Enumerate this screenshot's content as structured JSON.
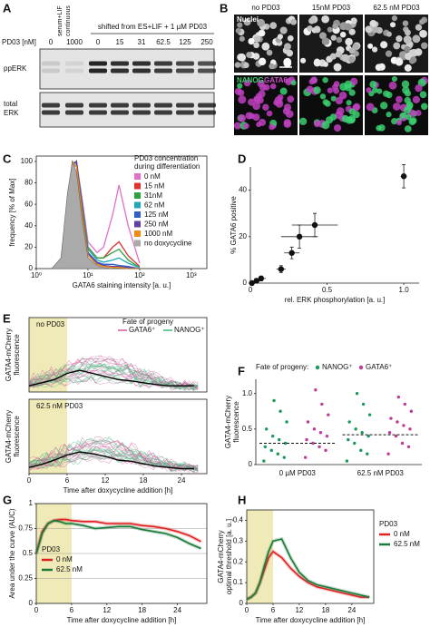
{
  "figure": {
    "A": {
      "panel": "A",
      "header_left": [
        "serum+LIF",
        "continuous"
      ],
      "header_right": "shifted from ES+LIF + 1 µM PD03",
      "row_label": "PD03 [nM]",
      "lanes": [
        0,
        1000,
        0,
        15,
        31,
        62.5,
        125,
        250
      ],
      "blot1": "ppERK",
      "blot2": [
        "total",
        "ERK"
      ]
    },
    "B": {
      "panel": "B",
      "columns": [
        "no PD03",
        "15nM PD03",
        "62.5 nM PD03"
      ],
      "stain1": "Nuclei",
      "stain2a": "NANOG",
      "stain2b": "GATA6"
    }
  },
  "chart_data": [
    {
      "panel": "C",
      "type": "line",
      "xlog": true,
      "legend_title": [
        "PD03 concentration",
        "during differentiation"
      ],
      "ylabel": "frequency [% of Max]",
      "xlabel": "GATA6 staining intensity [a. u.]",
      "xlim": [
        1,
        2000
      ],
      "xticks": [
        {
          "value": 1,
          "label": "10⁰"
        },
        {
          "value": 10,
          "label": "10¹"
        },
        {
          "value": 100,
          "label": "10²"
        },
        {
          "value": 1000,
          "label": "10³"
        }
      ],
      "ylim": [
        0,
        105
      ],
      "yticks": [
        0,
        20,
        40,
        60,
        80,
        100
      ],
      "x": [
        2,
        3,
        4,
        5,
        6,
        8,
        10,
        15,
        20,
        30,
        40,
        60,
        100
      ],
      "series": [
        {
          "name": "0 nM",
          "color": "#e070c8",
          "values": [
            0,
            5,
            40,
            90,
            100,
            60,
            25,
            15,
            20,
            50,
            78,
            40,
            5
          ]
        },
        {
          "name": "15 nM",
          "color": "#e03030",
          "values": [
            0,
            5,
            45,
            95,
            100,
            55,
            20,
            10,
            10,
            20,
            25,
            12,
            2
          ]
        },
        {
          "name": "31nM",
          "color": "#30a040",
          "values": [
            0,
            5,
            45,
            95,
            100,
            55,
            20,
            10,
            10,
            15,
            18,
            8,
            1
          ]
        },
        {
          "name": "62 nM",
          "color": "#20a8b8",
          "values": [
            0,
            5,
            50,
            95,
            100,
            50,
            18,
            8,
            6,
            8,
            10,
            5,
            1
          ]
        },
        {
          "name": "125 nM",
          "color": "#3060c8",
          "values": [
            0,
            5,
            50,
            98,
            100,
            50,
            15,
            6,
            4,
            4,
            3,
            2,
            0
          ]
        },
        {
          "name": "250 nM",
          "color": "#6040a0",
          "values": [
            0,
            5,
            50,
            98,
            100,
            48,
            14,
            5,
            3,
            2,
            2,
            1,
            0
          ]
        },
        {
          "name": "1000 nM",
          "color": "#f08c10",
          "values": [
            0,
            8,
            60,
            100,
            95,
            45,
            12,
            4,
            2,
            1,
            1,
            0,
            0
          ]
        },
        {
          "name": "no doxycycline",
          "color": "#aaaaaa",
          "fill": true,
          "values": [
            0,
            10,
            70,
            100,
            90,
            40,
            10,
            3,
            1,
            0,
            0,
            0,
            0
          ]
        }
      ]
    },
    {
      "panel": "D",
      "type": "scatter",
      "ylabel": "% GATA6 positive",
      "xlabel": "rel. ERK phosphorylation [a. u.]",
      "xlim": [
        0,
        1.1
      ],
      "xticks": [
        0,
        0.5,
        {
          "value": 1,
          "label": "1.0"
        }
      ],
      "ylim": [
        0,
        50
      ],
      "yticks": [
        0,
        20,
        40
      ],
      "x": [
        0.01,
        0.04,
        0.07,
        0.2,
        0.27,
        0.32,
        0.42,
        1.0
      ],
      "values": [
        0,
        1,
        2,
        6,
        13,
        20,
        25,
        46
      ],
      "xerr": [
        0.01,
        0.02,
        0.03,
        0.03,
        0.05,
        0.12,
        0.15,
        0.02
      ],
      "yerr": [
        0.5,
        1,
        1,
        1.5,
        2.5,
        5,
        5,
        5
      ]
    },
    {
      "panel": "E",
      "type": "line",
      "title": "no PD03",
      "ylabel": [
        "GATA4-mCherry",
        "fluorescence"
      ],
      "legend": {
        "title": "Fate of progeny",
        "entries": [
          {
            "name": "GATA6⁺",
            "color": "#d4559f"
          },
          {
            "name": "NANOG⁺",
            "color": "#3cb878"
          }
        ]
      },
      "highlight": [
        0,
        6
      ],
      "xlim": [
        0,
        28
      ],
      "ylim": [
        0,
        1.2
      ],
      "color": "#000000",
      "x": [
        0,
        2,
        4,
        6,
        8,
        10,
        12,
        14,
        16,
        18,
        20,
        22,
        24,
        26
      ],
      "values": [
        0.1,
        0.15,
        0.2,
        0.3,
        0.35,
        0.3,
        0.25,
        0.2,
        0.18,
        0.15,
        0.12,
        0.1,
        0.1,
        0.1
      ]
    },
    {
      "type": "line",
      "title": "62.5 nM PD03",
      "ylabel": [
        "GATA4-mCherry",
        "fluorescence"
      ],
      "xlabel": "Time after doxycycline addition [h]",
      "highlight": [
        0,
        6
      ],
      "xlim": [
        0,
        28
      ],
      "xticks": [
        0,
        6,
        12,
        18,
        24
      ],
      "ylim": [
        0,
        1.2
      ],
      "color": "#000000",
      "x": [
        0,
        2,
        4,
        6,
        8,
        10,
        12,
        14,
        16,
        18,
        20,
        22,
        24,
        26
      ],
      "values": [
        0.1,
        0.15,
        0.22,
        0.3,
        0.35,
        0.32,
        0.28,
        0.22,
        0.2,
        0.16,
        0.12,
        0.1,
        0.08,
        0.08
      ]
    },
    {
      "panel": "F",
      "type": "strip",
      "legend_title": "Fate of progeny:",
      "ylabel": [
        "GATA4-mCherry",
        "fluorescence"
      ],
      "categories": [
        "0 µM PD03",
        "62.5 nM PD03"
      ],
      "ylim": [
        0,
        1.2
      ],
      "yticks": [
        0,
        0.5,
        {
          "value": 1,
          "label": "1.0"
        }
      ],
      "medians": [
        0.3,
        0.42
      ],
      "series": [
        {
          "name": "NANOG⁺",
          "color": "#1a9a5a",
          "values": [
            [
              0.05,
              0.1,
              0.15,
              0.2,
              0.25,
              0.3,
              0.35,
              0.4,
              0.5,
              0.6,
              0.75,
              0.9
            ],
            [
              0.05,
              0.15,
              0.2,
              0.3,
              0.35,
              0.4,
              0.45,
              0.5,
              0.6,
              0.7,
              0.85,
              1.0
            ]
          ]
        },
        {
          "name": "GATA6⁺",
          "color": "#c03a9a",
          "values": [
            [
              0.1,
              0.2,
              0.25,
              0.3,
              0.35,
              0.4,
              0.45,
              0.5,
              0.6,
              0.7,
              0.85,
              1.05
            ],
            [
              0.15,
              0.25,
              0.3,
              0.4,
              0.45,
              0.5,
              0.55,
              0.6,
              0.65,
              0.75,
              0.85,
              0.95
            ]
          ]
        }
      ]
    },
    {
      "panel": "G",
      "type": "line",
      "grid": true,
      "legend_title": "PD03",
      "ylabel": "Area under the curve (AUC)",
      "xlabel": "Time after doxycycline addition [h]",
      "highlight": [
        0,
        6
      ],
      "xlim": [
        0,
        29
      ],
      "xticks": [
        0,
        6,
        12,
        18,
        24
      ],
      "ylim": [
        0,
        1
      ],
      "yticks": [
        0,
        0.25,
        0.5,
        0.75,
        1
      ],
      "x": [
        0,
        1,
        2,
        3,
        4,
        5,
        6,
        8,
        10,
        12,
        14,
        16,
        18,
        20,
        22,
        24,
        26,
        28
      ],
      "series": [
        {
          "name": "0 nM",
          "color": "#e02020",
          "values": [
            0.5,
            0.72,
            0.8,
            0.83,
            0.84,
            0.84,
            0.83,
            0.82,
            0.82,
            0.8,
            0.8,
            0.8,
            0.78,
            0.77,
            0.75,
            0.72,
            0.68,
            0.62
          ]
        },
        {
          "name": "62.5 nM",
          "color": "#1a7a3a",
          "values": [
            0.5,
            0.7,
            0.8,
            0.83,
            0.82,
            0.8,
            0.8,
            0.78,
            0.75,
            0.76,
            0.77,
            0.77,
            0.74,
            0.72,
            0.7,
            0.66,
            0.6,
            0.55
          ]
        }
      ]
    },
    {
      "panel": "H",
      "type": "line",
      "legend_title": "PD03",
      "ylabel": [
        "GATA4-mCherry",
        "optimal threshold [a. u.]"
      ],
      "xlabel": "Time after doxycycline addition [h]",
      "highlight": [
        0,
        6
      ],
      "xlim": [
        0,
        29
      ],
      "xticks": [
        0,
        6,
        12,
        18,
        24
      ],
      "ylim": [
        0,
        0.45
      ],
      "yticks": [
        0,
        0.1,
        0.2,
        0.3,
        0.4
      ],
      "x": [
        0,
        1,
        2,
        3,
        4,
        5,
        6,
        8,
        10,
        12,
        14,
        16,
        18,
        20,
        22,
        24,
        26,
        28
      ],
      "series": [
        {
          "name": "0 nM",
          "color": "#e02020",
          "values": [
            0.02,
            0.03,
            0.05,
            0.1,
            0.16,
            0.22,
            0.25,
            0.22,
            0.17,
            0.13,
            0.1,
            0.08,
            0.07,
            0.06,
            0.05,
            0.04,
            0.03,
            0.03
          ]
        },
        {
          "name": "62.5 nM",
          "color": "#1a7a3a",
          "values": [
            0.02,
            0.03,
            0.05,
            0.1,
            0.18,
            0.25,
            0.3,
            0.31,
            0.22,
            0.15,
            0.11,
            0.09,
            0.08,
            0.07,
            0.06,
            0.05,
            0.04,
            0.03
          ]
        }
      ]
    }
  ]
}
